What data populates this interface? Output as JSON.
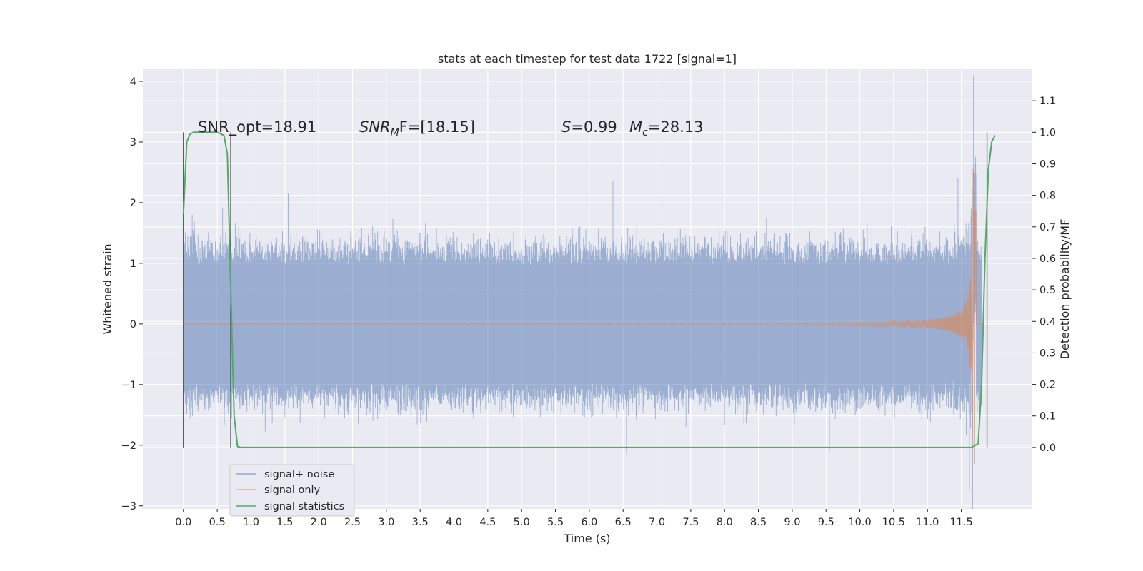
{
  "chart_data": {
    "type": "line",
    "title": "stats at each timestep for test data 1722 [signal=1]",
    "xlabel": "Time (s)",
    "ylabel": "Whitened strain",
    "ylabel_right": "Detection probability/MF",
    "xlim": [
      -0.6,
      12.55
    ],
    "ylim": [
      -3.05,
      4.2
    ],
    "ylim_right": [
      -0.195,
      1.2
    ],
    "x_ticks": [
      "0.0",
      "0.5",
      "1.0",
      "1.5",
      "2.0",
      "2.5",
      "3.0",
      "3.5",
      "4.0",
      "4.5",
      "5.0",
      "5.5",
      "6.0",
      "6.5",
      "7.0",
      "7.5",
      "8.0",
      "8.5",
      "9.0",
      "9.5",
      "10.0",
      "10.5",
      "11.0",
      "11.5"
    ],
    "y_ticks": [
      "−3",
      "−2",
      "−1",
      "0",
      "1",
      "2",
      "3",
      "4"
    ],
    "y_ticks_right": [
      "0.0",
      "0.1",
      "0.2",
      "0.3",
      "0.4",
      "0.5",
      "0.6",
      "0.7",
      "0.8",
      "0.9",
      "1.0",
      "1.1"
    ],
    "grid": true,
    "legend_placement": "lower-left",
    "background": "#eaeaf2",
    "annotations": {
      "snr_opt": "SNR_opt=18.91",
      "snr_mf_sym": "SNR",
      "snr_mf_sub": "M",
      "snr_mf_rest": "F=[18.15]",
      "s_sym": "S",
      "s_val": "=0.99",
      "mc_sym": "M",
      "mc_sub": "c",
      "mc_val": "=28.13"
    },
    "series": [
      {
        "name": "signal+ noise",
        "color": "#4c72b0",
        "axis": "left",
        "kind": "noisy-strain",
        "x_range": [
          0.0,
          11.8
        ],
        "typical_amplitude": 1.35,
        "peaks": [
          [
            0.13,
            1.8
          ],
          [
            0.58,
            1.9
          ],
          [
            1.55,
            2.15
          ],
          [
            6.35,
            2.35
          ],
          [
            6.55,
            -2.15
          ],
          [
            9.55,
            -2.1
          ],
          [
            11.45,
            2.4
          ],
          [
            11.62,
            -2.75
          ],
          [
            11.68,
            4.1
          ]
        ]
      },
      {
        "name": "signal only",
        "color": "#dd8452",
        "axis": "left",
        "kind": "chirp",
        "x_range": [
          0.0,
          11.8
        ],
        "merger_time": 11.68,
        "peak_amplitude": 2.55,
        "min_amplitude": -2.3
      },
      {
        "name": "signal statistics",
        "color": "#55a868",
        "axis": "right",
        "x": [
          0.0,
          0.05,
          0.1,
          0.15,
          0.2,
          0.3,
          0.4,
          0.5,
          0.6,
          0.65,
          0.7,
          0.75,
          0.8,
          0.85,
          0.9,
          1.5,
          3.0,
          5.0,
          7.0,
          9.0,
          10.5,
          11.2,
          11.5,
          11.65,
          11.75,
          11.8,
          11.85,
          11.9,
          11.95,
          12.0
        ],
        "values": [
          0.74,
          0.97,
          0.995,
          1.0,
          1.0,
          1.0,
          1.0,
          1.0,
          0.99,
          0.93,
          0.5,
          0.1,
          0.003,
          0.0,
          0.0,
          0.0,
          0.0,
          0.0,
          0.0,
          0.0,
          0.0,
          0.0,
          0.0,
          0.0,
          0.012,
          0.2,
          0.6,
          0.88,
          0.97,
          0.99
        ]
      }
    ],
    "segments": {
      "color": "#404040",
      "lines": [
        [
          0.0,
          0.0,
          1.0
        ],
        [
          0.7,
          0.0,
          1.0
        ],
        [
          11.88,
          0.0,
          1.0
        ]
      ]
    }
  }
}
